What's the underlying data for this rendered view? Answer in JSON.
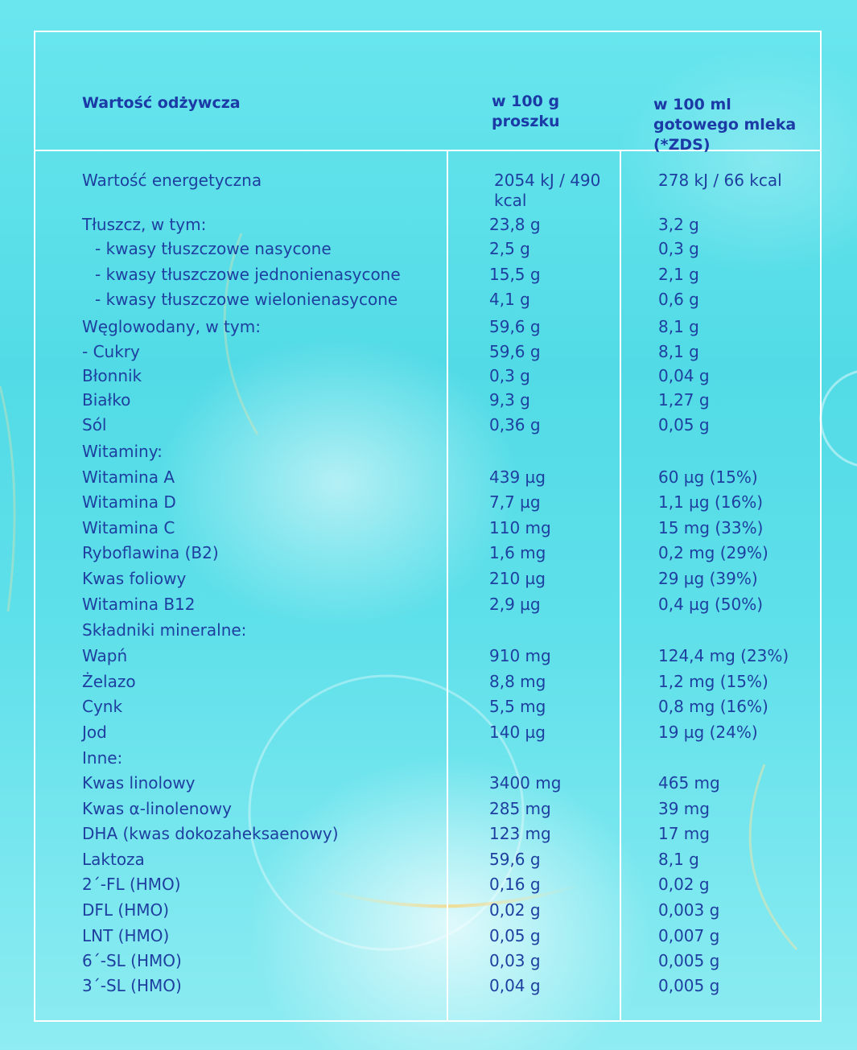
{
  "header": {
    "nutrition_label": "Wartość odżywcza",
    "per_100g": "w 100 g proszku",
    "per_100ml": "w 100 ml gotowego mleka (*ZDS)"
  },
  "rows": [
    {
      "name": "Wartość energetyczna",
      "per_100g": "2054 kJ / 490 kcal",
      "per_100ml": "278 kJ / 66 kcal"
    },
    {
      "name": "Tłuszcz, w tym:",
      "per_100g": "23,8 g",
      "per_100ml": "3,2 g"
    },
    {
      "name": "- kwasy tłuszczowe nasycone",
      "per_100g": "2,5 g",
      "per_100ml": "0,3 g"
    },
    {
      "name": "- kwasy tłuszczowe jednonienasycone",
      "per_100g": "15,5 g",
      "per_100ml": "2,1 g"
    },
    {
      "name": "- kwasy tłuszczowe wielonienasycone",
      "per_100g": "4,1 g",
      "per_100ml": "0,6 g"
    },
    {
      "name": "Węglowodany, w tym:",
      "per_100g": "59,6 g",
      "per_100ml": "8,1 g"
    },
    {
      "name": "- Cukry",
      "per_100g": "59,6 g",
      "per_100ml": "8,1 g"
    },
    {
      "name": "Błonnik",
      "per_100g": "0,3 g",
      "per_100ml": "0,04 g"
    },
    {
      "name": "Białko",
      "per_100g": "9,3 g",
      "per_100ml": "1,27 g"
    },
    {
      "name": "Sól",
      "per_100g": "0,36 g",
      "per_100ml": "0,05 g"
    },
    {
      "name": "Witaminy:",
      "per_100g": "",
      "per_100ml": ""
    },
    {
      "name": "Witamina A",
      "per_100g": "439 µg",
      "per_100ml": "60 µg (15%)"
    },
    {
      "name": "Witamina D",
      "per_100g": "7,7 µg",
      "per_100ml": "1,1 µg (16%)"
    },
    {
      "name": "Witamina C",
      "per_100g": "110 mg",
      "per_100ml": "15 mg (33%)"
    },
    {
      "name": "Ryboflawina (B2)",
      "per_100g": "1,6 mg",
      "per_100ml": "0,2 mg (29%)"
    },
    {
      "name": "Kwas foliowy",
      "per_100g": "210 µg",
      "per_100ml": "29 µg (39%)"
    },
    {
      "name": "Witamina B12",
      "per_100g": "2,9 µg",
      "per_100ml": "0,4 µg (50%)"
    },
    {
      "name": "Składniki mineralne:",
      "per_100g": "",
      "per_100ml": ""
    },
    {
      "name": "Wapń",
      "per_100g": "910 mg",
      "per_100ml": "124,4 mg (23%)"
    },
    {
      "name": "Żelazo",
      "per_100g": "8,8 mg",
      "per_100ml": "1,2 mg (15%)"
    },
    {
      "name": "Cynk",
      "per_100g": "5,5 mg",
      "per_100ml": "0,8 mg (16%)"
    },
    {
      "name": "Jod",
      "per_100g": "140 µg",
      "per_100ml": "19 µg (24%)"
    },
    {
      "name": "Inne:",
      "per_100g": "",
      "per_100ml": ""
    },
    {
      "name": "Kwas linolowy",
      "per_100g": "3400 mg",
      "per_100ml": "465 mg"
    },
    {
      "name": "Kwas α-linolenowy",
      "per_100g": "285 mg",
      "per_100ml": "39 mg"
    },
    {
      "name": "DHA (kwas dokozaheksaenowy)",
      "per_100g": "123 mg",
      "per_100ml": "17 mg"
    },
    {
      "name": "Laktoza",
      "per_100g": "59,6 g",
      "per_100ml": "8,1 g"
    },
    {
      "name": "2´-FL (HMO)",
      "per_100g": "0,16 g",
      "per_100ml": "0,02 g"
    },
    {
      "name": "DFL (HMO)",
      "per_100g": "0,02 g",
      "per_100ml": "0,003 g"
    },
    {
      "name": "LNT (HMO)",
      "per_100g": "0,05 g",
      "per_100ml": "0,007 g"
    },
    {
      "name": "6´-SL (HMO)",
      "per_100g": "0,03 g",
      "per_100ml": "0,005 g"
    },
    {
      "name": "3´-SL (HMO)",
      "per_100g": "0,04 g",
      "per_100ml": "0,005 g"
    }
  ]
}
